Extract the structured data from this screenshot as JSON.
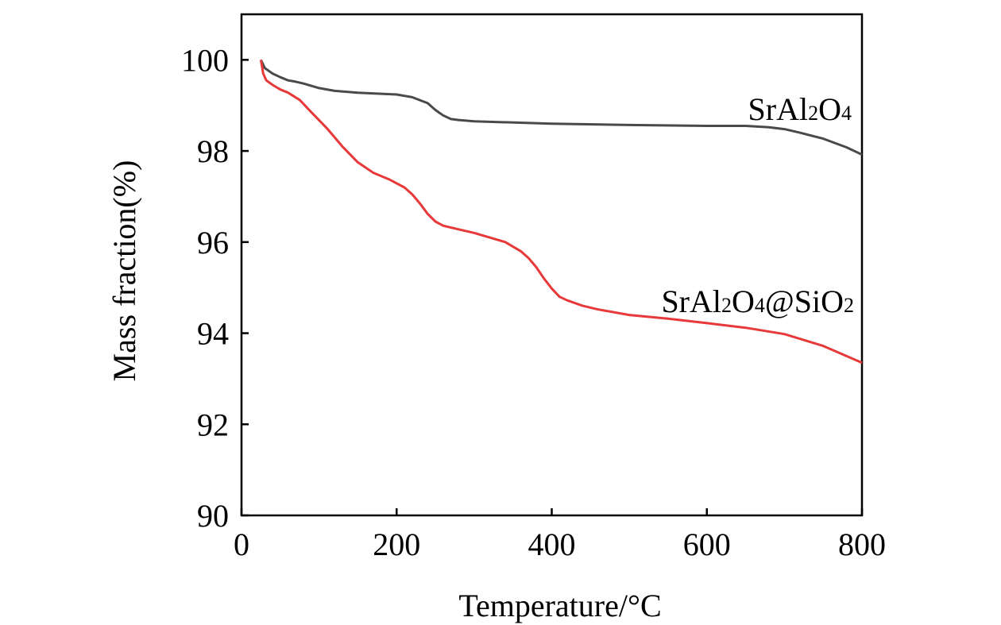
{
  "chart_data": {
    "type": "line",
    "title": "",
    "xlabel": "Temperature/°C",
    "ylabel": "Mass fraction(%)",
    "xlim": [
      0,
      800
    ],
    "ylim": [
      90,
      101
    ],
    "xticks": [
      0,
      200,
      400,
      600,
      800
    ],
    "yticks": [
      90,
      92,
      94,
      96,
      98,
      100
    ],
    "grid": false,
    "legend": "inline labels",
    "series": [
      {
        "name": "SrAl2O4",
        "label_parts": [
          {
            "t": "SrAl"
          },
          {
            "t": "2",
            "sub": true
          },
          {
            "t": "O"
          },
          {
            "t": "4",
            "sub": true
          }
        ],
        "color": "#4a4a4a",
        "x": [
          25,
          30,
          40,
          50,
          60,
          70,
          80,
          100,
          120,
          150,
          200,
          220,
          240,
          250,
          260,
          270,
          280,
          300,
          400,
          500,
          600,
          650,
          680,
          700,
          720,
          750,
          780,
          800
        ],
        "y": [
          100.0,
          99.82,
          99.7,
          99.62,
          99.55,
          99.52,
          99.48,
          99.38,
          99.32,
          99.28,
          99.24,
          99.18,
          99.05,
          98.9,
          98.78,
          98.7,
          98.68,
          98.65,
          98.6,
          98.57,
          98.55,
          98.55,
          98.52,
          98.48,
          98.4,
          98.27,
          98.08,
          97.92
        ]
      },
      {
        "name": "SrAl2O4@SiO2",
        "label_parts": [
          {
            "t": "SrAl"
          },
          {
            "t": "2",
            "sub": true
          },
          {
            "t": "O"
          },
          {
            "t": "4",
            "sub": true
          },
          {
            "t": "@SiO"
          },
          {
            "t": "2",
            "sub": true
          }
        ],
        "color": "#e8393a",
        "x": [
          25,
          28,
          32,
          40,
          50,
          60,
          75,
          90,
          110,
          130,
          150,
          170,
          190,
          210,
          220,
          230,
          240,
          250,
          260,
          280,
          300,
          320,
          340,
          360,
          370,
          380,
          390,
          400,
          410,
          420,
          440,
          460,
          500,
          550,
          600,
          650,
          700,
          750,
          800
        ],
        "y": [
          100.0,
          99.7,
          99.55,
          99.45,
          99.35,
          99.28,
          99.12,
          98.85,
          98.5,
          98.1,
          97.75,
          97.52,
          97.38,
          97.2,
          97.05,
          96.85,
          96.62,
          96.45,
          96.36,
          96.28,
          96.2,
          96.1,
          96.0,
          95.8,
          95.65,
          95.45,
          95.2,
          94.98,
          94.8,
          94.72,
          94.6,
          94.52,
          94.4,
          94.32,
          94.22,
          94.12,
          93.98,
          93.72,
          93.35
        ]
      }
    ]
  }
}
